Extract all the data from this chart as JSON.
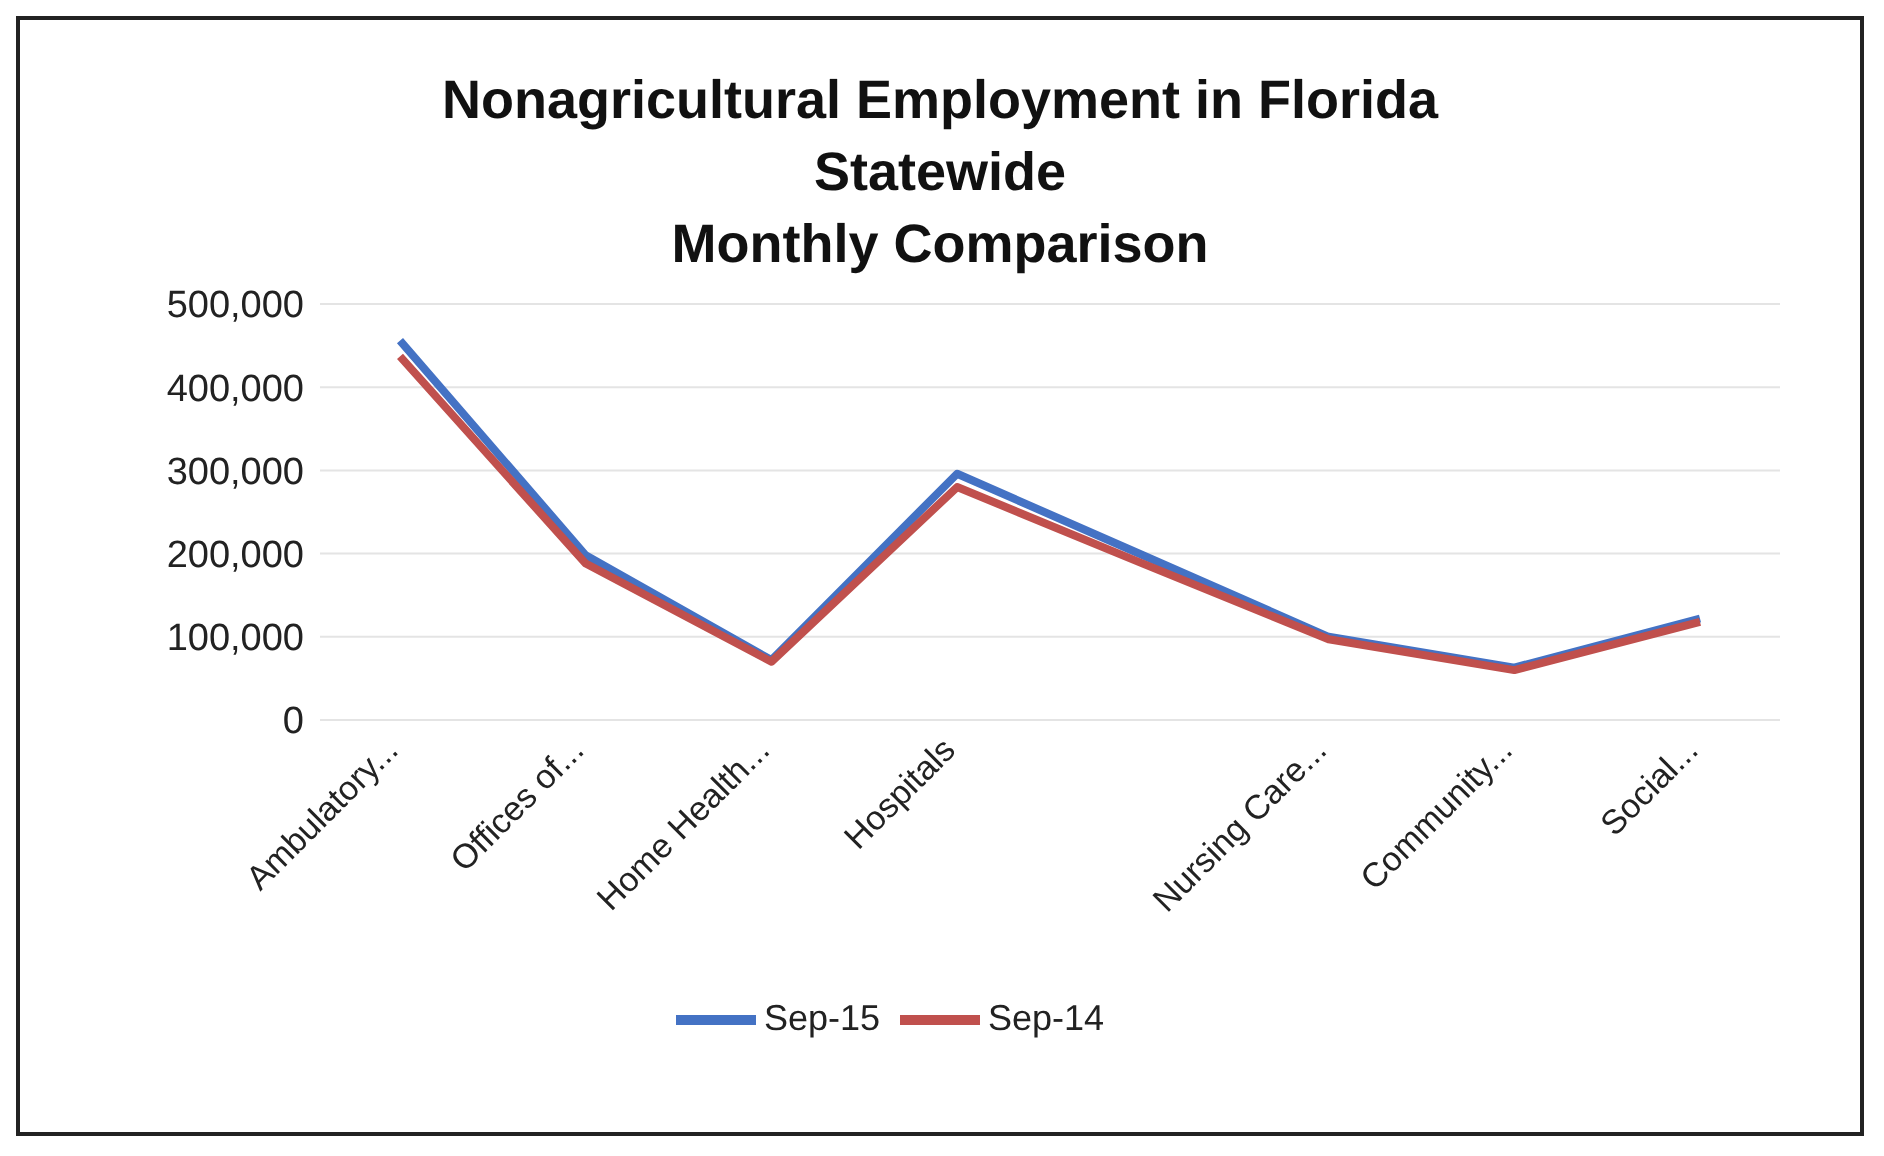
{
  "chart_data": {
    "type": "line",
    "title": "Nonagricultural Employment in Florida\nStatewide\nMonthly Comparison",
    "categories": [
      "Ambulatory...",
      "Offices of...",
      "Home Health...",
      "Hospitals",
      null,
      "Nursing Care...",
      "Community...",
      "Social..."
    ],
    "series": [
      {
        "name": "Sep-15",
        "color": "#4472c4",
        "values": [
          456000,
          198000,
          72000,
          296000,
          198000,
          100000,
          63000,
          122000
        ]
      },
      {
        "name": "Sep-14",
        "color": "#c0504d",
        "values": [
          437000,
          188000,
          70000,
          280000,
          188000,
          97000,
          60000,
          118000
        ]
      }
    ],
    "ylim": [
      0,
      500000
    ],
    "yticks": [
      {
        "value": 0,
        "label": "0"
      },
      {
        "value": 100000,
        "label": "100,000"
      },
      {
        "value": 200000,
        "label": "200,000"
      },
      {
        "value": 300000,
        "label": "300,000"
      },
      {
        "value": 400000,
        "label": "400,000"
      },
      {
        "value": 500000,
        "label": "500,000"
      }
    ],
    "grid": "y",
    "legend": "bottom",
    "marker": "none",
    "line_style": "solid"
  }
}
